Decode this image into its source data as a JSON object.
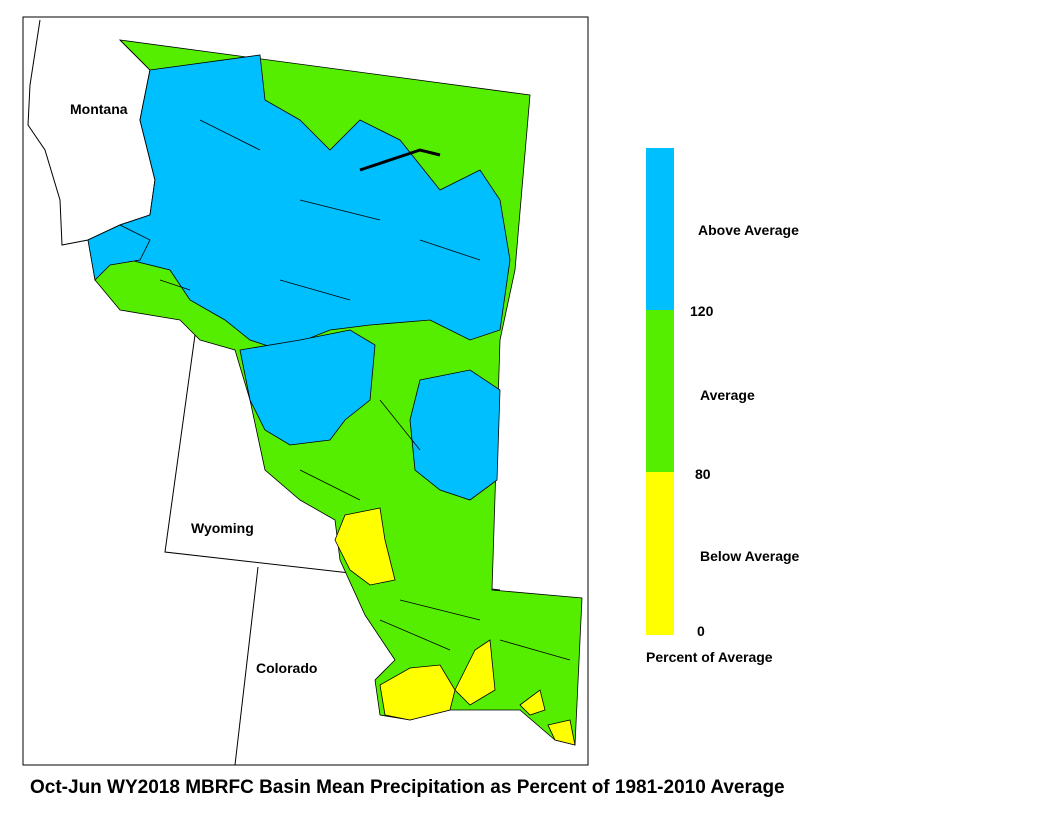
{
  "map": {
    "states": [
      "Montana",
      "Wyoming",
      "Colorado"
    ]
  },
  "legend": {
    "items": [
      "Above Average",
      "Average",
      "Below Average"
    ],
    "ticks": [
      "120",
      "80",
      "0"
    ],
    "caption": "Percent of Average"
  },
  "title": "Oct-Jun WY2018 MBRFC Basin Mean Precipitation as Percent of 1981-2010 Average"
}
